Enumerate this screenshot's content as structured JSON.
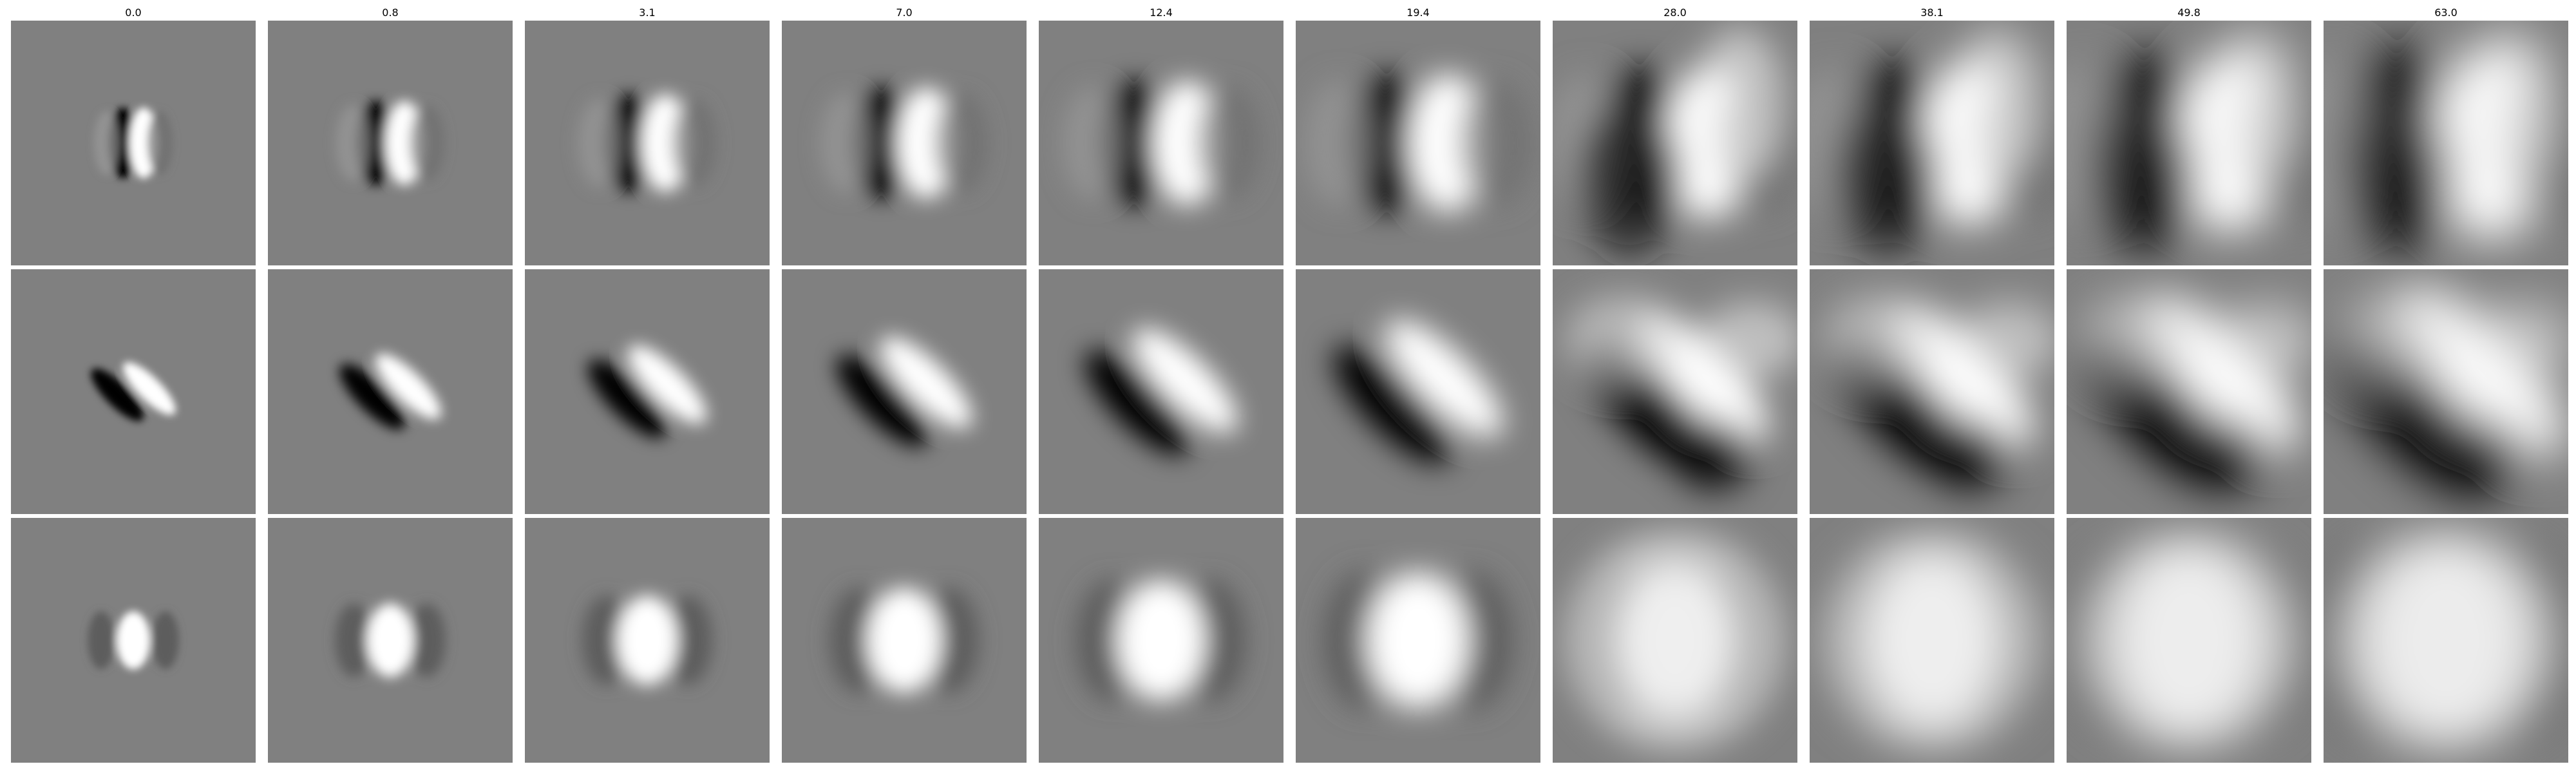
{
  "figure": {
    "column_titles": [
      "0.0",
      "0.8",
      "3.1",
      "7.0",
      "12.4",
      "19.4",
      "28.0",
      "38.1",
      "49.8",
      "63.0"
    ],
    "row_count": 3,
    "colormap": "grayscale",
    "background_gray": "#808080"
  }
}
